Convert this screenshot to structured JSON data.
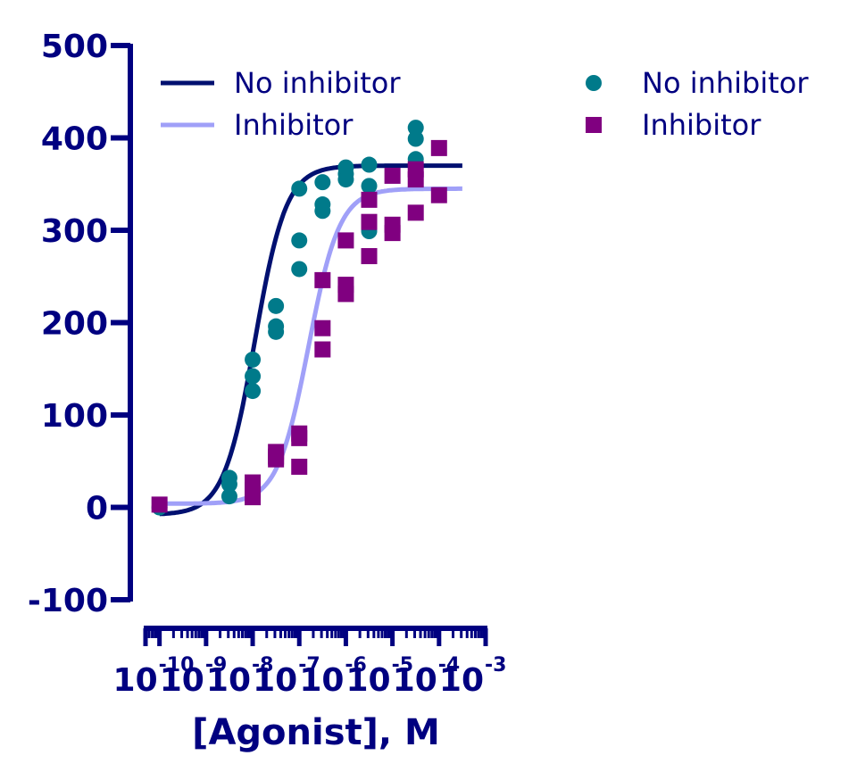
{
  "chart_data": {
    "type": "scatter",
    "title": "",
    "xlabel": "[Agonist], M",
    "ylabel": "",
    "x_scale": "log",
    "xlim_exponent": [
      -10.3,
      -3
    ],
    "ylim": [
      -100,
      500
    ],
    "y_ticks": [
      "-100",
      "0",
      "100",
      "200",
      "300",
      "400",
      "500"
    ],
    "x_tick_base": "10",
    "x_tick_exponents": [
      "-10",
      "-9",
      "-8",
      "-7",
      "-6",
      "-5",
      "-4",
      "-3"
    ],
    "legend_position": "top",
    "colors": {
      "axis": "#000080",
      "no_inhibitor_points": "#007A8A",
      "inhibitor_points": "#800080",
      "no_inhibitor_curve": "#001070",
      "inhibitor_curve": "#A0A0F8"
    },
    "curves": [
      {
        "name": "No inhibitor",
        "model": "sigmoidal",
        "bottom": -8,
        "top": 370,
        "logEC50": -7.95,
        "hill": 1.3,
        "x_range_exponent": [
          -10.0,
          -3.5
        ]
      },
      {
        "name": "Inhibitor",
        "model": "sigmoidal",
        "bottom": 4,
        "top": 345,
        "logEC50": -6.8,
        "hill": 1.3,
        "x_range_exponent": [
          -10.0,
          -3.5
        ]
      }
    ],
    "series": [
      {
        "name": "No inhibitor",
        "marker": "circle",
        "points": [
          [
            -10,
            0
          ],
          [
            -8.5,
            32
          ],
          [
            -8.5,
            25
          ],
          [
            -8.5,
            12
          ],
          [
            -8,
            160
          ],
          [
            -8,
            142
          ],
          [
            -8,
            126
          ],
          [
            -7.5,
            218
          ],
          [
            -7.5,
            196
          ],
          [
            -7.5,
            190
          ],
          [
            -7,
            345
          ],
          [
            -7,
            289
          ],
          [
            -7,
            258
          ],
          [
            -6.5,
            352
          ],
          [
            -6.5,
            328
          ],
          [
            -6.5,
            321
          ],
          [
            -6,
            368
          ],
          [
            -6,
            361
          ],
          [
            -6,
            355
          ],
          [
            -5.5,
            371
          ],
          [
            -5.5,
            348
          ],
          [
            -5.5,
            299
          ],
          [
            -4.5,
            411
          ],
          [
            -4.5,
            399
          ],
          [
            -4.5,
            377
          ]
        ]
      },
      {
        "name": "Inhibitor",
        "marker": "square",
        "points": [
          [
            -10,
            3
          ],
          [
            -8,
            27
          ],
          [
            -8,
            19
          ],
          [
            -8,
            11
          ],
          [
            -7.5,
            60
          ],
          [
            -7.5,
            55
          ],
          [
            -7.5,
            52
          ],
          [
            -7,
            80
          ],
          [
            -7,
            75
          ],
          [
            -7,
            44
          ],
          [
            -6.5,
            246
          ],
          [
            -6.5,
            194
          ],
          [
            -6.5,
            171
          ],
          [
            -6,
            289
          ],
          [
            -6,
            241
          ],
          [
            -6,
            231
          ],
          [
            -5.5,
            333
          ],
          [
            -5.5,
            309
          ],
          [
            -5.5,
            272
          ],
          [
            -5,
            359
          ],
          [
            -5,
            306
          ],
          [
            -5,
            297
          ],
          [
            -4.5,
            366
          ],
          [
            -4.5,
            355
          ],
          [
            -4.5,
            319
          ],
          [
            -4,
            389
          ],
          [
            -4,
            338
          ]
        ]
      }
    ],
    "legend": [
      {
        "label": "No inhibitor",
        "kind": "line",
        "color_key": "no_inhibitor_curve"
      },
      {
        "label": "Inhibitor",
        "kind": "line",
        "color_key": "inhibitor_curve"
      },
      {
        "label": "No inhibitor",
        "kind": "circle",
        "color_key": "no_inhibitor_points"
      },
      {
        "label": "Inhibitor",
        "kind": "square",
        "color_key": "inhibitor_points"
      }
    ]
  }
}
